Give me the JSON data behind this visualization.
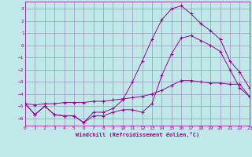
{
  "xlabel": "Windchill (Refroidissement éolien,°C)",
  "bg_color": "#c0e8e8",
  "grid_color": "#9999bb",
  "line_color": "#990099",
  "x_ticks": [
    0,
    1,
    2,
    3,
    4,
    5,
    6,
    7,
    8,
    9,
    10,
    11,
    12,
    13,
    14,
    15,
    16,
    17,
    18,
    19,
    20,
    21,
    22,
    23
  ],
  "y_ticks": [
    -6,
    -5,
    -4,
    -3,
    -2,
    -1,
    0,
    1,
    2,
    3
  ],
  "xlim": [
    0,
    23
  ],
  "ylim": [
    -6.6,
    3.6
  ],
  "line1_x": [
    0,
    1,
    2,
    3,
    4,
    5,
    6,
    7,
    8,
    9,
    10,
    11,
    12,
    13,
    14,
    15,
    16,
    17,
    18,
    19,
    20,
    21,
    22,
    23
  ],
  "line1_y": [
    -4.8,
    -5.7,
    -5.0,
    -5.7,
    -5.8,
    -5.8,
    -6.35,
    -5.8,
    -5.8,
    -5.5,
    -5.3,
    -5.3,
    -5.5,
    -4.8,
    -2.5,
    -0.7,
    0.6,
    0.8,
    0.4,
    0.0,
    -0.5,
    -2.0,
    -3.5,
    -4.2
  ],
  "line2_x": [
    0,
    1,
    2,
    3,
    4,
    5,
    6,
    7,
    8,
    9,
    10,
    11,
    12,
    13,
    14,
    15,
    16,
    17,
    18,
    19,
    20,
    21,
    22,
    23
  ],
  "line2_y": [
    -4.8,
    -5.7,
    -5.0,
    -5.7,
    -5.8,
    -5.8,
    -6.35,
    -5.5,
    -5.5,
    -5.2,
    -4.5,
    -3.0,
    -1.3,
    0.5,
    2.1,
    3.0,
    3.25,
    2.6,
    1.8,
    1.2,
    0.5,
    -1.3,
    -2.2,
    -3.5
  ],
  "line3_x": [
    0,
    1,
    2,
    3,
    4,
    5,
    6,
    7,
    8,
    9,
    10,
    11,
    12,
    13,
    14,
    15,
    16,
    17,
    18,
    19,
    20,
    21,
    22,
    23
  ],
  "line3_y": [
    -4.8,
    -4.9,
    -4.8,
    -4.8,
    -4.7,
    -4.7,
    -4.7,
    -4.6,
    -4.6,
    -4.5,
    -4.4,
    -4.3,
    -4.2,
    -4.0,
    -3.7,
    -3.3,
    -2.9,
    -2.9,
    -3.0,
    -3.1,
    -3.1,
    -3.2,
    -3.2,
    -4.2
  ]
}
